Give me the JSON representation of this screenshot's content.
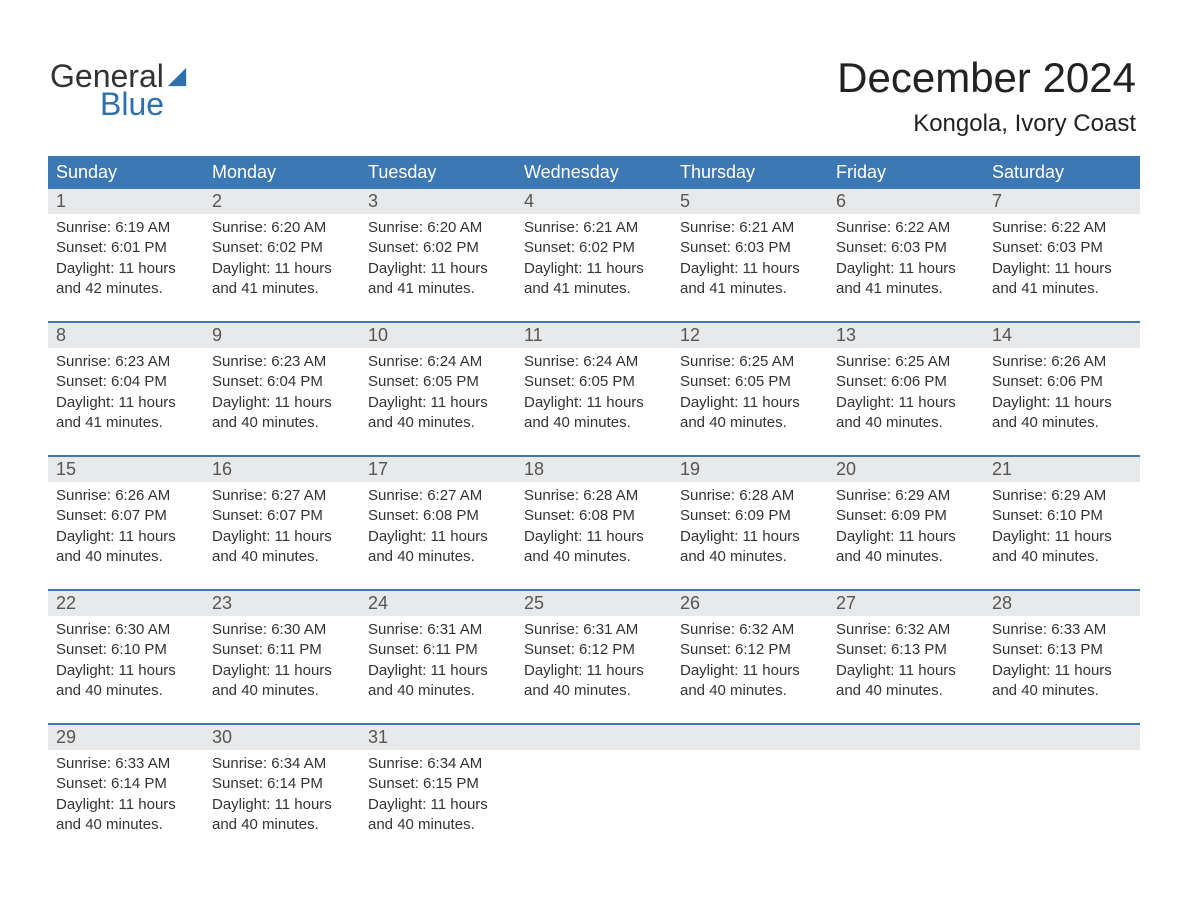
{
  "brand": {
    "word1": "General",
    "word2": "Blue",
    "sail_color": "#2e6fae",
    "word1_color": "#333333",
    "word2_color": "#2e6fae"
  },
  "title": {
    "month": "December 2024",
    "location": "Kongola, Ivory Coast"
  },
  "colors": {
    "header_bg": "#3c78b4",
    "header_fg": "#ffffff",
    "daynum_bg": "#e8e9ea",
    "daynum_fg": "#555555",
    "divider": "#3c78b4",
    "text": "#333333",
    "page_bg": "#ffffff"
  },
  "days_of_week": [
    "Sunday",
    "Monday",
    "Tuesday",
    "Wednesday",
    "Thursday",
    "Friday",
    "Saturday"
  ],
  "weeks": [
    [
      {
        "n": "1",
        "sunrise": "Sunrise: 6:19 AM",
        "sunset": "Sunset: 6:01 PM",
        "d1": "Daylight: 11 hours",
        "d2": "and 42 minutes."
      },
      {
        "n": "2",
        "sunrise": "Sunrise: 6:20 AM",
        "sunset": "Sunset: 6:02 PM",
        "d1": "Daylight: 11 hours",
        "d2": "and 41 minutes."
      },
      {
        "n": "3",
        "sunrise": "Sunrise: 6:20 AM",
        "sunset": "Sunset: 6:02 PM",
        "d1": "Daylight: 11 hours",
        "d2": "and 41 minutes."
      },
      {
        "n": "4",
        "sunrise": "Sunrise: 6:21 AM",
        "sunset": "Sunset: 6:02 PM",
        "d1": "Daylight: 11 hours",
        "d2": "and 41 minutes."
      },
      {
        "n": "5",
        "sunrise": "Sunrise: 6:21 AM",
        "sunset": "Sunset: 6:03 PM",
        "d1": "Daylight: 11 hours",
        "d2": "and 41 minutes."
      },
      {
        "n": "6",
        "sunrise": "Sunrise: 6:22 AM",
        "sunset": "Sunset: 6:03 PM",
        "d1": "Daylight: 11 hours",
        "d2": "and 41 minutes."
      },
      {
        "n": "7",
        "sunrise": "Sunrise: 6:22 AM",
        "sunset": "Sunset: 6:03 PM",
        "d1": "Daylight: 11 hours",
        "d2": "and 41 minutes."
      }
    ],
    [
      {
        "n": "8",
        "sunrise": "Sunrise: 6:23 AM",
        "sunset": "Sunset: 6:04 PM",
        "d1": "Daylight: 11 hours",
        "d2": "and 41 minutes."
      },
      {
        "n": "9",
        "sunrise": "Sunrise: 6:23 AM",
        "sunset": "Sunset: 6:04 PM",
        "d1": "Daylight: 11 hours",
        "d2": "and 40 minutes."
      },
      {
        "n": "10",
        "sunrise": "Sunrise: 6:24 AM",
        "sunset": "Sunset: 6:05 PM",
        "d1": "Daylight: 11 hours",
        "d2": "and 40 minutes."
      },
      {
        "n": "11",
        "sunrise": "Sunrise: 6:24 AM",
        "sunset": "Sunset: 6:05 PM",
        "d1": "Daylight: 11 hours",
        "d2": "and 40 minutes."
      },
      {
        "n": "12",
        "sunrise": "Sunrise: 6:25 AM",
        "sunset": "Sunset: 6:05 PM",
        "d1": "Daylight: 11 hours",
        "d2": "and 40 minutes."
      },
      {
        "n": "13",
        "sunrise": "Sunrise: 6:25 AM",
        "sunset": "Sunset: 6:06 PM",
        "d1": "Daylight: 11 hours",
        "d2": "and 40 minutes."
      },
      {
        "n": "14",
        "sunrise": "Sunrise: 6:26 AM",
        "sunset": "Sunset: 6:06 PM",
        "d1": "Daylight: 11 hours",
        "d2": "and 40 minutes."
      }
    ],
    [
      {
        "n": "15",
        "sunrise": "Sunrise: 6:26 AM",
        "sunset": "Sunset: 6:07 PM",
        "d1": "Daylight: 11 hours",
        "d2": "and 40 minutes."
      },
      {
        "n": "16",
        "sunrise": "Sunrise: 6:27 AM",
        "sunset": "Sunset: 6:07 PM",
        "d1": "Daylight: 11 hours",
        "d2": "and 40 minutes."
      },
      {
        "n": "17",
        "sunrise": "Sunrise: 6:27 AM",
        "sunset": "Sunset: 6:08 PM",
        "d1": "Daylight: 11 hours",
        "d2": "and 40 minutes."
      },
      {
        "n": "18",
        "sunrise": "Sunrise: 6:28 AM",
        "sunset": "Sunset: 6:08 PM",
        "d1": "Daylight: 11 hours",
        "d2": "and 40 minutes."
      },
      {
        "n": "19",
        "sunrise": "Sunrise: 6:28 AM",
        "sunset": "Sunset: 6:09 PM",
        "d1": "Daylight: 11 hours",
        "d2": "and 40 minutes."
      },
      {
        "n": "20",
        "sunrise": "Sunrise: 6:29 AM",
        "sunset": "Sunset: 6:09 PM",
        "d1": "Daylight: 11 hours",
        "d2": "and 40 minutes."
      },
      {
        "n": "21",
        "sunrise": "Sunrise: 6:29 AM",
        "sunset": "Sunset: 6:10 PM",
        "d1": "Daylight: 11 hours",
        "d2": "and 40 minutes."
      }
    ],
    [
      {
        "n": "22",
        "sunrise": "Sunrise: 6:30 AM",
        "sunset": "Sunset: 6:10 PM",
        "d1": "Daylight: 11 hours",
        "d2": "and 40 minutes."
      },
      {
        "n": "23",
        "sunrise": "Sunrise: 6:30 AM",
        "sunset": "Sunset: 6:11 PM",
        "d1": "Daylight: 11 hours",
        "d2": "and 40 minutes."
      },
      {
        "n": "24",
        "sunrise": "Sunrise: 6:31 AM",
        "sunset": "Sunset: 6:11 PM",
        "d1": "Daylight: 11 hours",
        "d2": "and 40 minutes."
      },
      {
        "n": "25",
        "sunrise": "Sunrise: 6:31 AM",
        "sunset": "Sunset: 6:12 PM",
        "d1": "Daylight: 11 hours",
        "d2": "and 40 minutes."
      },
      {
        "n": "26",
        "sunrise": "Sunrise: 6:32 AM",
        "sunset": "Sunset: 6:12 PM",
        "d1": "Daylight: 11 hours",
        "d2": "and 40 minutes."
      },
      {
        "n": "27",
        "sunrise": "Sunrise: 6:32 AM",
        "sunset": "Sunset: 6:13 PM",
        "d1": "Daylight: 11 hours",
        "d2": "and 40 minutes."
      },
      {
        "n": "28",
        "sunrise": "Sunrise: 6:33 AM",
        "sunset": "Sunset: 6:13 PM",
        "d1": "Daylight: 11 hours",
        "d2": "and 40 minutes."
      }
    ],
    [
      {
        "n": "29",
        "sunrise": "Sunrise: 6:33 AM",
        "sunset": "Sunset: 6:14 PM",
        "d1": "Daylight: 11 hours",
        "d2": "and 40 minutes."
      },
      {
        "n": "30",
        "sunrise": "Sunrise: 6:34 AM",
        "sunset": "Sunset: 6:14 PM",
        "d1": "Daylight: 11 hours",
        "d2": "and 40 minutes."
      },
      {
        "n": "31",
        "sunrise": "Sunrise: 6:34 AM",
        "sunset": "Sunset: 6:15 PM",
        "d1": "Daylight: 11 hours",
        "d2": "and 40 minutes."
      },
      {
        "n": "",
        "sunrise": "",
        "sunset": "",
        "d1": "",
        "d2": ""
      },
      {
        "n": "",
        "sunrise": "",
        "sunset": "",
        "d1": "",
        "d2": ""
      },
      {
        "n": "",
        "sunrise": "",
        "sunset": "",
        "d1": "",
        "d2": ""
      },
      {
        "n": "",
        "sunrise": "",
        "sunset": "",
        "d1": "",
        "d2": ""
      }
    ]
  ]
}
